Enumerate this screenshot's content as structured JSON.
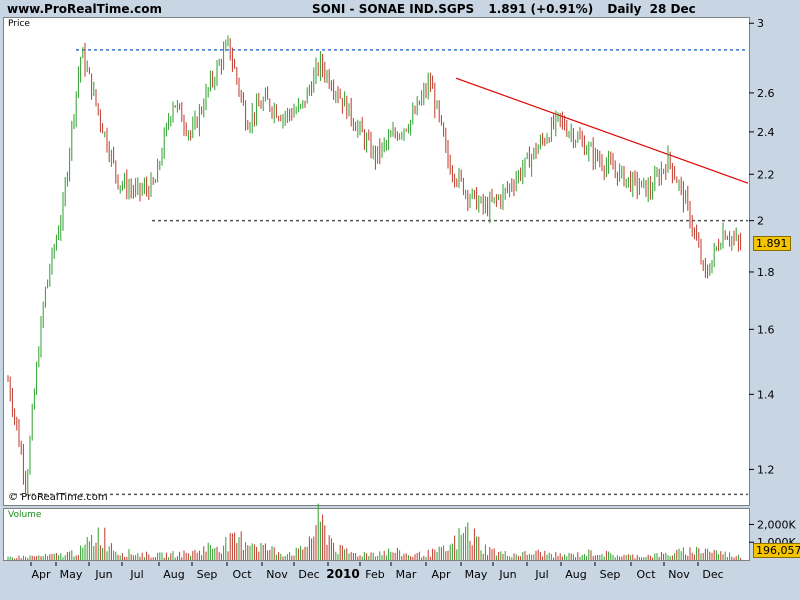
{
  "header": {
    "site": "www.ProRealTime.com",
    "ticker": "SONI - SONAE IND.SGPS",
    "price_change": "1.891 (+0.91%)",
    "period": "Daily",
    "date": "28 Dec"
  },
  "price_panel": {
    "label": "Price",
    "copyright": "© ProRealTime.com",
    "last_value_label": "1.891"
  },
  "volume_panel": {
    "label": "Volume",
    "last_value_label": "196,057"
  },
  "colors": {
    "background": "#c8d6e4",
    "panel": "#ffffff",
    "candle_up": "#2ca02c",
    "candle_down": "#c0392b",
    "trendline": "#e00000",
    "resistance_line": "#3a6fd8",
    "support_line": "#555555",
    "volume_bar_up": "#2ca02c",
    "volume_bar_down": "#c0392b",
    "last_label": "#f5c400"
  },
  "chart_data": [
    {
      "type": "line",
      "subtype": "candlestick",
      "x_ticks": [
        "Apr",
        "May",
        "Jun",
        "Jul",
        "Aug",
        "Sep",
        "Oct",
        "Nov",
        "Dec",
        "2010",
        "Feb",
        "Mar",
        "Apr",
        "May",
        "Jun",
        "Jul",
        "Aug",
        "Sep",
        "Oct",
        "Nov",
        "Dec"
      ],
      "y_ticks": [
        1.2,
        1.4,
        1.6,
        1.8,
        2,
        2.2,
        2.4,
        2.6,
        3
      ],
      "y_scale": "log",
      "ylim": [
        1.12,
        3.02
      ],
      "x": [
        "Mar",
        "Apr",
        "Apr",
        "May",
        "May",
        "Jun",
        "Jul",
        "Jul",
        "Aug",
        "Sep",
        "Sep",
        "Oct",
        "Oct",
        "Nov",
        "Nov",
        "Dec",
        "Dec",
        "2010",
        "Jan",
        "Feb",
        "Feb",
        "Mar",
        "Mar",
        "Apr",
        "Apr",
        "May",
        "May",
        "Jun",
        "Jun",
        "Jul",
        "Jul",
        "Aug",
        "Aug",
        "Sep",
        "Sep",
        "Oct",
        "Oct",
        "Nov",
        "Nov",
        "Dec",
        "Dec"
      ],
      "series": [
        {
          "values": [
            1.44,
            1.16,
            1.72,
            2.05,
            2.83,
            2.47,
            2.17,
            2.12,
            2.15,
            2.56,
            2.38,
            2.64,
            2.87,
            2.45,
            2.56,
            2.48,
            2.52,
            2.76,
            2.6,
            2.43,
            2.28,
            2.38,
            2.46,
            2.66,
            2.25,
            2.12,
            2.05,
            2.11,
            2.22,
            2.34,
            2.46,
            2.37,
            2.28,
            2.22,
            2.16,
            2.13,
            2.27,
            2.06,
            1.78,
            1.96,
            1.891
          ]
        }
      ],
      "annotations": [
        {
          "type": "resistance",
          "value": 2.84
        },
        {
          "type": "support",
          "value": 2.0
        },
        {
          "type": "support",
          "value": 1.14
        },
        {
          "type": "trendline",
          "from": [
            "Apr",
            2.68
          ],
          "to": [
            "Dec",
            2.16
          ]
        }
      ],
      "last_value": 1.891
    },
    {
      "type": "bar",
      "subtype": "volume",
      "y_ticks": [
        "1,000K",
        "2,000K"
      ],
      "ylim": [
        0,
        2700
      ],
      "values_k": [
        180,
        220,
        260,
        350,
        620,
        1850,
        520,
        420,
        300,
        380,
        450,
        860,
        1100,
        1400,
        820,
        430,
        600,
        2550,
        680,
        380,
        480,
        560,
        300,
        450,
        700,
        1950,
        750,
        400,
        380,
        480,
        300,
        350,
        520,
        320,
        260,
        300,
        380,
        580,
        700,
        420,
        196
      ],
      "last_value": 196.057
    }
  ]
}
